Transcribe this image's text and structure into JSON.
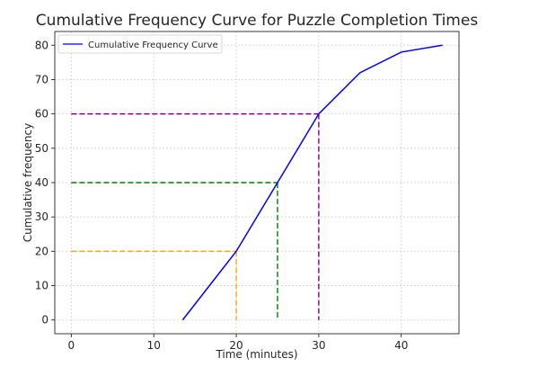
{
  "chart_data": {
    "type": "line",
    "title": "Cumulative Frequency Curve for Puzzle Completion Times",
    "xlabel": "Time (minutes)",
    "ylabel": "Cumulative frequency",
    "xlim": [
      -2,
      47
    ],
    "ylim": [
      -4,
      84
    ],
    "xticks": [
      0,
      10,
      20,
      30,
      40
    ],
    "yticks": [
      0,
      10,
      20,
      30,
      40,
      50,
      60,
      70,
      80
    ],
    "grid": true,
    "legend_position": "top-left",
    "series": [
      {
        "name": "Cumulative Frequency Curve",
        "color": "#0000ff",
        "x": [
          13.5,
          20,
          25,
          30,
          35,
          40,
          45
        ],
        "y": [
          0,
          20,
          40,
          60,
          72,
          78,
          80
        ]
      }
    ],
    "reference_lines": [
      {
        "color": "#ffa500",
        "x": 20,
        "y": 20
      },
      {
        "color": "#008000",
        "x": 25,
        "y": 40
      },
      {
        "color": "#800080",
        "x": 30,
        "y": 60
      }
    ]
  }
}
